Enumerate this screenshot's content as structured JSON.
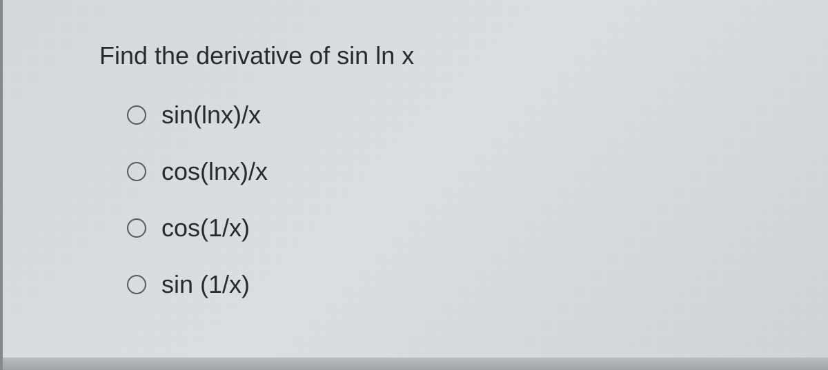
{
  "question": {
    "prompt": "Find the derivative of sin ln x",
    "options": [
      {
        "label": "sin(lnx)/x",
        "selected": false
      },
      {
        "label": "cos(lnx)/x",
        "selected": false
      },
      {
        "label": "cos(1/x)",
        "selected": false
      },
      {
        "label": "sin (1/x)",
        "selected": false
      }
    ]
  },
  "styling": {
    "background_color": "#d8dde0",
    "text_color": "#2a2a2a",
    "radio_border_color": "#5a5a5a",
    "question_fontsize": 36,
    "option_fontsize": 36,
    "font_family": "Arial"
  }
}
